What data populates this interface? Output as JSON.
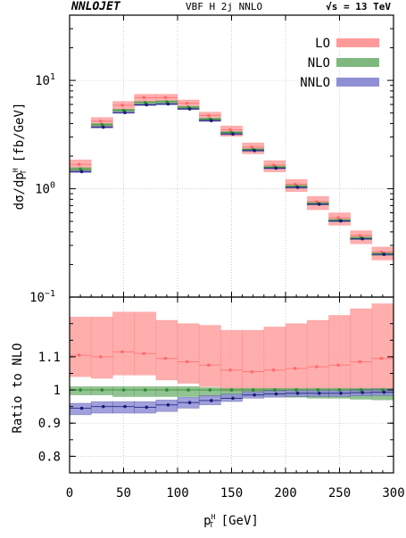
{
  "header": {
    "program": "NNLOJET",
    "process": "VBF H 2j NNLO",
    "energy": "√s = 13 TeV"
  },
  "chart_data": [
    {
      "type": "bar",
      "panel": "main",
      "ylabel": "dσ/dp",
      "ylabel_sup": "H",
      "ylabel_sub": "T",
      "ylabel_unit": " [fb/GeV]",
      "yscale": "log",
      "ylim": [
        0.1,
        40
      ],
      "xlim": [
        0,
        300
      ],
      "y_ticks": [
        {
          "value": 0.1,
          "base": "10",
          "exp": "−1"
        },
        {
          "value": 1,
          "base": "10",
          "exp": "0"
        },
        {
          "value": 10,
          "base": "10",
          "exp": "1"
        }
      ],
      "grid": true,
      "legend_position": "top-right",
      "bin_edges": [
        0,
        20,
        40,
        60,
        80,
        100,
        120,
        140,
        160,
        180,
        200,
        220,
        240,
        260,
        280,
        300
      ],
      "series": [
        {
          "name": "LO",
          "color": "#ff6b6b",
          "band_color": "#ff9a9a",
          "center": [
            1.68,
            4.2,
            5.9,
            6.95,
            6.95,
            6.15,
            4.75,
            3.5,
            2.42,
            1.65,
            1.1,
            0.76,
            0.54,
            0.37,
            0.26
          ],
          "low": [
            1.45,
            3.75,
            5.35,
            6.35,
            6.35,
            5.55,
            4.25,
            3.05,
            2.1,
            1.43,
            0.94,
            0.64,
            0.46,
            0.31,
            0.22
          ],
          "high": [
            1.85,
            4.55,
            6.4,
            7.45,
            7.45,
            6.6,
            5.1,
            3.8,
            2.65,
            1.82,
            1.22,
            0.85,
            0.6,
            0.41,
            0.29
          ]
        },
        {
          "name": "NLO",
          "color": "#2e8b2e",
          "band_color": "#7fb87f",
          "center": [
            1.52,
            3.9,
            5.3,
            6.25,
            6.35,
            5.65,
            4.4,
            3.3,
            2.3,
            1.58,
            1.05,
            0.73,
            0.51,
            0.35,
            0.25
          ],
          "low": [
            1.47,
            3.8,
            5.17,
            6.1,
            6.2,
            5.52,
            4.3,
            3.22,
            2.25,
            1.54,
            1.02,
            0.71,
            0.495,
            0.34,
            0.243
          ],
          "high": [
            1.57,
            4.0,
            5.43,
            6.4,
            6.5,
            5.78,
            4.5,
            3.38,
            2.35,
            1.62,
            1.08,
            0.75,
            0.525,
            0.36,
            0.257
          ]
        },
        {
          "name": "NNLO",
          "color": "#1a1a7a",
          "band_color": "#8f8fd6",
          "center": [
            1.44,
            3.7,
            5.05,
            5.95,
            6.05,
            5.45,
            4.25,
            3.2,
            2.25,
            1.55,
            1.03,
            0.72,
            0.505,
            0.345,
            0.248
          ],
          "low": [
            1.41,
            3.63,
            4.96,
            5.85,
            5.95,
            5.37,
            4.18,
            3.15,
            2.22,
            1.53,
            1.02,
            0.71,
            0.5,
            0.34,
            0.245
          ],
          "high": [
            1.47,
            3.77,
            5.14,
            6.05,
            6.15,
            5.53,
            4.32,
            3.25,
            2.28,
            1.57,
            1.04,
            0.73,
            0.51,
            0.35,
            0.251
          ]
        }
      ]
    },
    {
      "type": "bar",
      "panel": "ratio",
      "ylabel": "Ratio to NLO",
      "xlabel_base": "p",
      "xlabel_sup": "H",
      "xlabel_sub": "T",
      "xlabel_unit": " [GeV]",
      "xlim": [
        0,
        300
      ],
      "ylim": [
        0.75,
        1.28
      ],
      "x_ticks": [
        0,
        50,
        100,
        150,
        200,
        250,
        300
      ],
      "y_ticks": [
        0.8,
        0.9,
        1,
        1.1
      ],
      "y_tick_labels": [
        "0.8",
        "0.9",
        "1",
        "1.1"
      ],
      "grid": true,
      "bin_edges": [
        0,
        20,
        40,
        60,
        80,
        100,
        120,
        140,
        160,
        180,
        200,
        220,
        240,
        260,
        280,
        300
      ],
      "series": [
        {
          "name": "LO",
          "color": "#ff6b6b",
          "band_color": "#ff9a9a",
          "center": [
            1.105,
            1.1,
            1.115,
            1.11,
            1.095,
            1.085,
            1.075,
            1.06,
            1.055,
            1.06,
            1.065,
            1.07,
            1.075,
            1.085,
            1.095
          ],
          "low": [
            1.04,
            1.035,
            1.045,
            1.045,
            1.03,
            1.02,
            1.01,
            0.995,
            0.99,
            0.99,
            0.99,
            0.99,
            0.99,
            0.99,
            0.99
          ],
          "high": [
            1.22,
            1.22,
            1.235,
            1.235,
            1.21,
            1.2,
            1.195,
            1.18,
            1.18,
            1.19,
            1.2,
            1.21,
            1.225,
            1.245,
            1.26
          ]
        },
        {
          "name": "NLO",
          "color": "#2e8b2e",
          "band_color": "#7fb87f",
          "center": [
            1.0,
            1.0,
            1.0,
            1.0,
            1.0,
            1.0,
            1.0,
            1.0,
            1.0,
            1.0,
            1.0,
            1.0,
            1.0,
            1.0,
            1.0
          ],
          "low": [
            0.985,
            0.985,
            0.98,
            0.98,
            0.98,
            0.98,
            0.98,
            0.98,
            0.98,
            0.98,
            0.978,
            0.975,
            0.975,
            0.972,
            0.97
          ],
          "high": [
            1.01,
            1.01,
            1.01,
            1.01,
            1.01,
            1.01,
            1.007,
            1.005,
            1.005,
            1.005,
            1.005,
            1.005,
            1.005,
            1.005,
            1.005
          ]
        },
        {
          "name": "NNLO",
          "color": "#1a1a7a",
          "band_color": "#8f8fd6",
          "center": [
            0.945,
            0.95,
            0.95,
            0.948,
            0.955,
            0.962,
            0.968,
            0.975,
            0.985,
            0.988,
            0.99,
            0.99,
            0.99,
            0.992,
            0.993
          ],
          "low": [
            0.925,
            0.93,
            0.93,
            0.93,
            0.935,
            0.945,
            0.955,
            0.965,
            0.975,
            0.978,
            0.98,
            0.98,
            0.98,
            0.982,
            0.983
          ],
          "high": [
            0.96,
            0.965,
            0.965,
            0.965,
            0.97,
            0.978,
            0.983,
            0.988,
            0.995,
            0.998,
            1.0,
            1.0,
            1.0,
            1.002,
            1.003
          ]
        }
      ]
    }
  ]
}
